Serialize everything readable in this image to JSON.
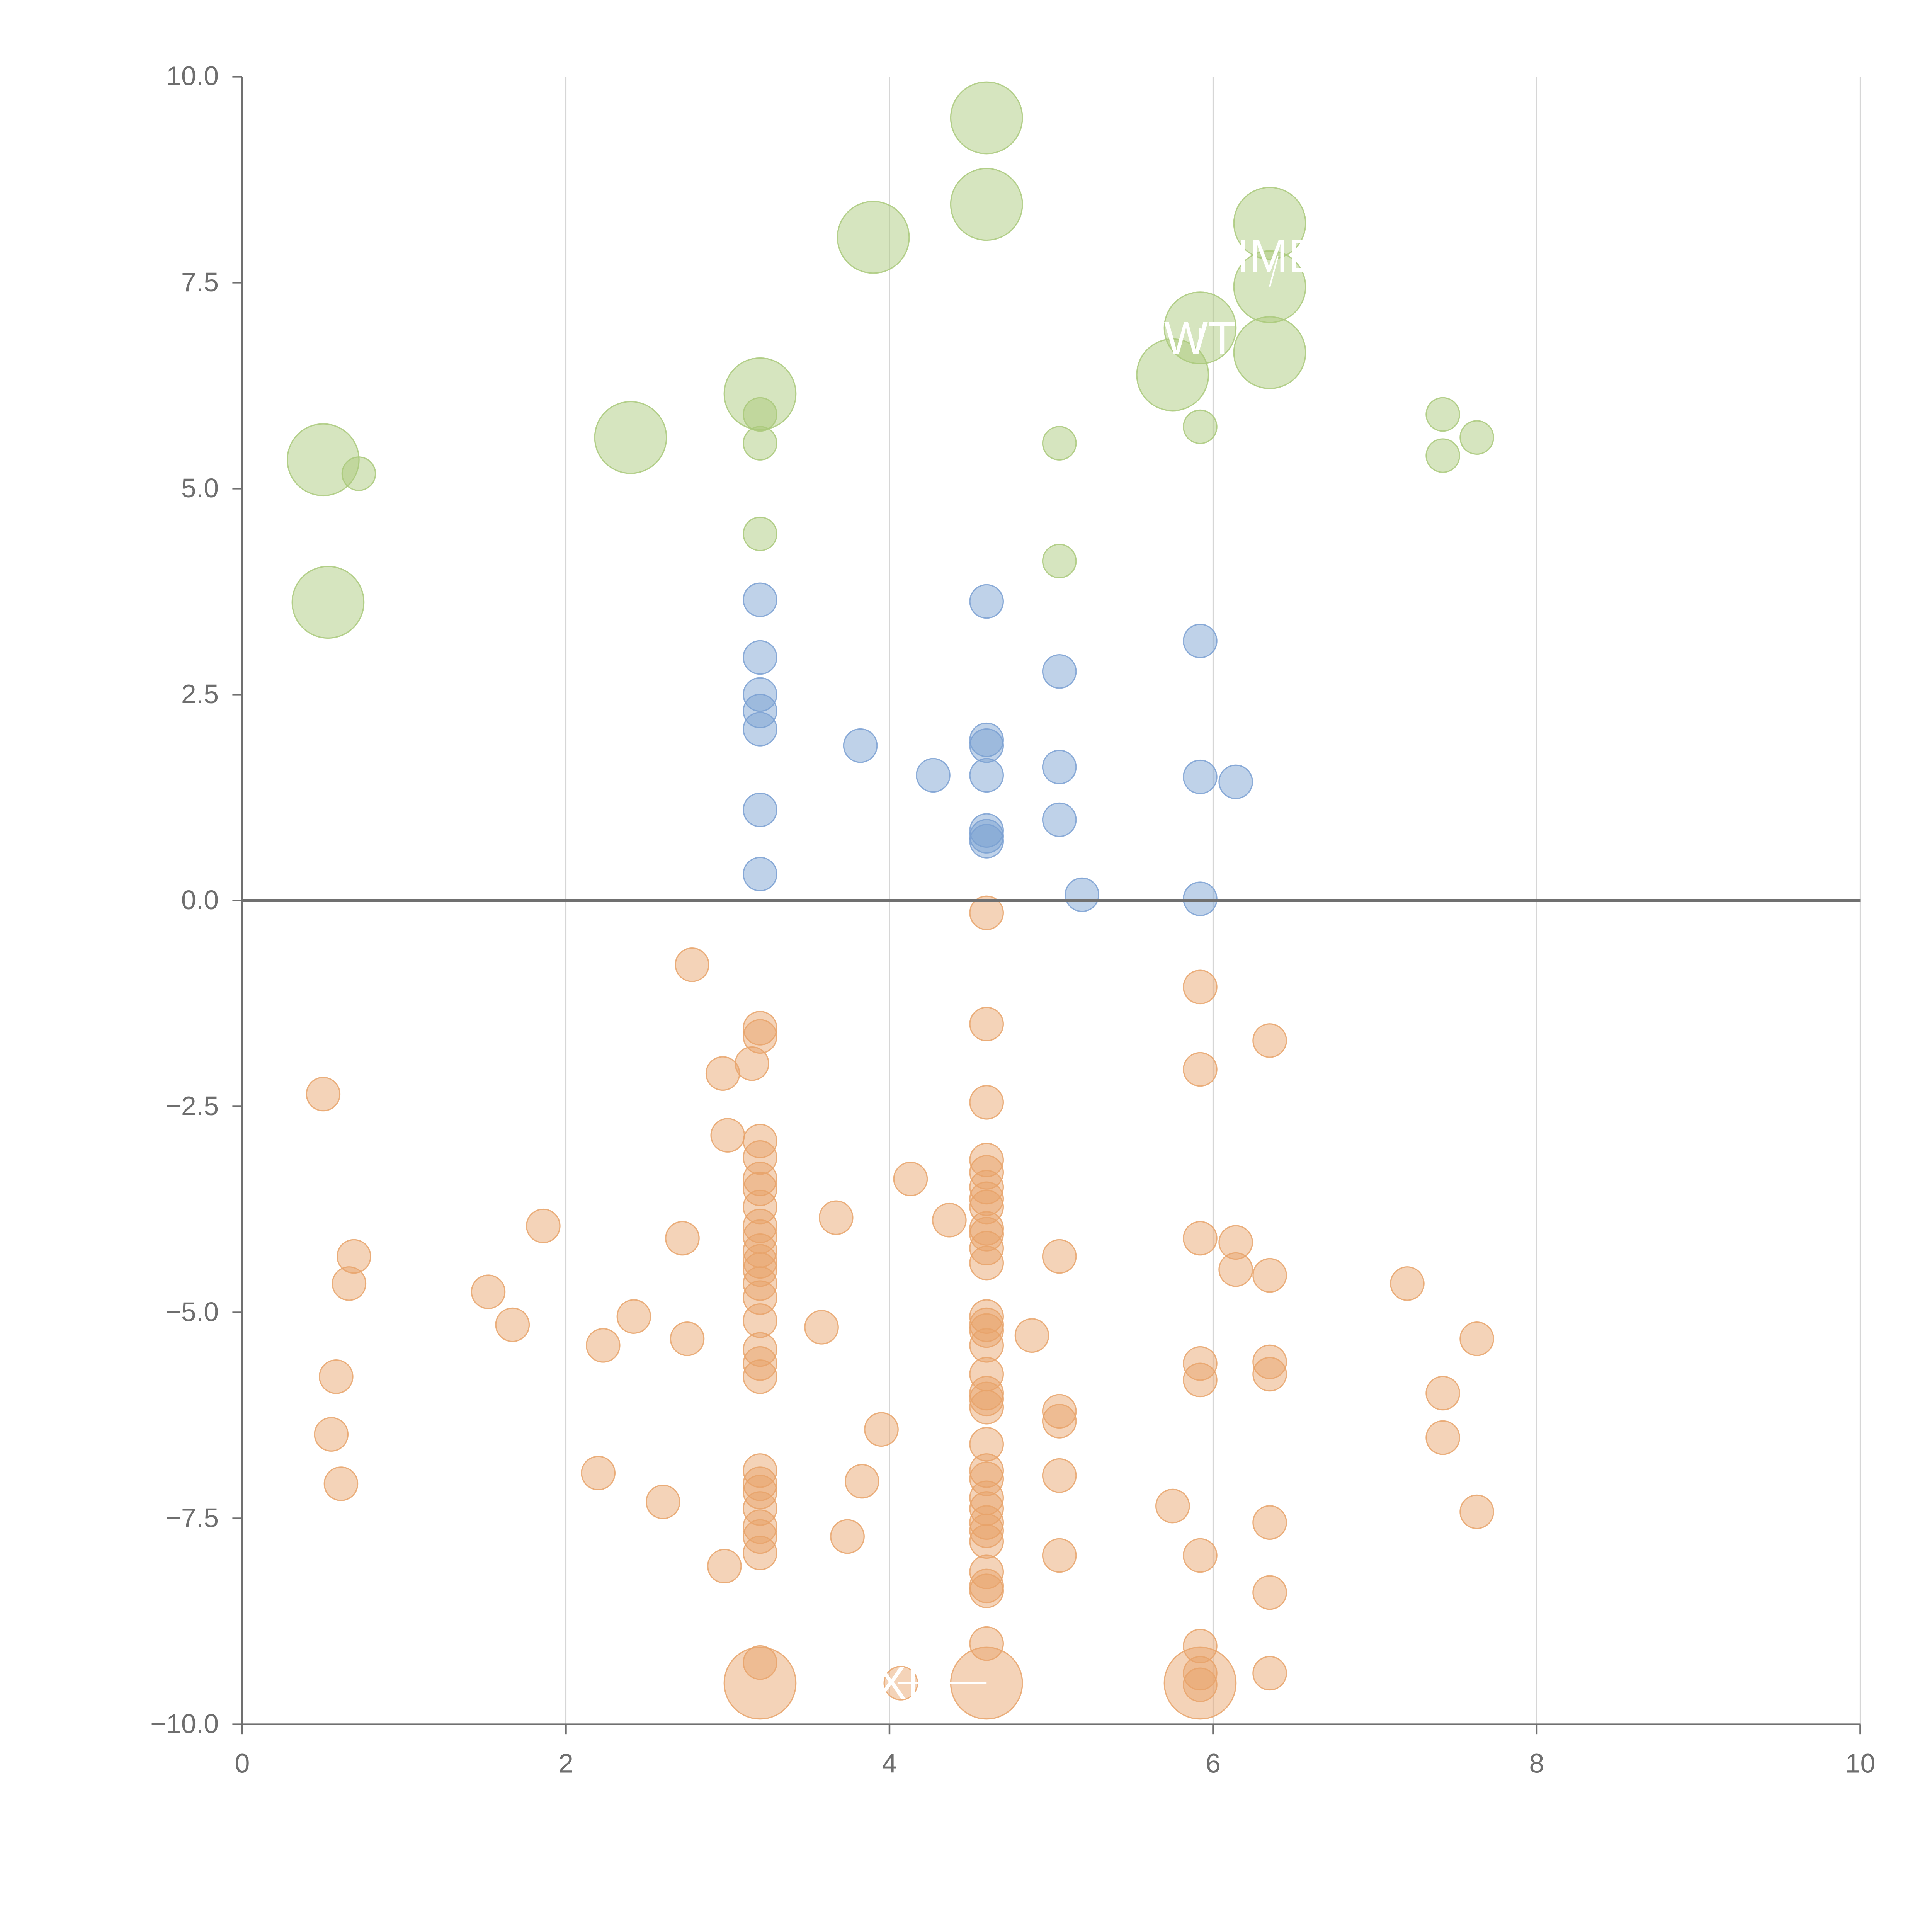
{
  "chart_data": {
    "type": "scatter",
    "title": "",
    "xlabel": "",
    "ylabel": "",
    "xlim": [
      0,
      10
    ],
    "ylim": [
      -10,
      10
    ],
    "x_ticks": [
      0,
      2,
      4,
      6,
      8,
      10
    ],
    "x_tick_labels": [
      "0",
      "2",
      "4",
      "6",
      "8",
      "10"
    ],
    "y_ticks": [
      -10,
      -7.5,
      -5,
      -2.5,
      0,
      2.5,
      5,
      7.5,
      10
    ],
    "y_tick_labels": [
      "−10.0",
      "−7.5",
      "−5.0",
      "−2.5",
      "0.0",
      "2.5",
      "5.0",
      "7.5",
      "10.0"
    ],
    "grid": "vertical",
    "reference_line_y": 0,
    "colors": {
      "green": "#a9c97a",
      "blue": "#7aa0d2",
      "orange": "#e8a36a",
      "axis": "#707070",
      "grid": "#d6d6d6",
      "label": "#ffffff"
    },
    "series": [
      {
        "name": "green",
        "points": [
          {
            "x": 0.5,
            "y": 5.35,
            "s": 3
          },
          {
            "x": 0.72,
            "y": 5.18,
            "s": 1
          },
          {
            "x": 0.53,
            "y": 3.62,
            "s": 3
          },
          {
            "x": 2.4,
            "y": 5.62,
            "s": 3
          },
          {
            "x": 3.2,
            "y": 6.15,
            "s": 3
          },
          {
            "x": 3.2,
            "y": 5.9,
            "s": 1
          },
          {
            "x": 3.2,
            "y": 5.55,
            "s": 1
          },
          {
            "x": 3.2,
            "y": 4.45,
            "s": 1
          },
          {
            "x": 3.9,
            "y": 8.05,
            "s": 3
          },
          {
            "x": 4.6,
            "y": 9.5,
            "s": 3
          },
          {
            "x": 4.6,
            "y": 8.45,
            "s": 3
          },
          {
            "x": 5.05,
            "y": 5.55,
            "s": 1
          },
          {
            "x": 5.05,
            "y": 4.12,
            "s": 1
          },
          {
            "x": 5.75,
            "y": 6.38,
            "s": 3
          },
          {
            "x": 5.92,
            "y": 6.95,
            "s": 3
          },
          {
            "x": 5.92,
            "y": 5.75,
            "s": 1
          },
          {
            "x": 6.35,
            "y": 8.22,
            "s": 3
          },
          {
            "x": 6.35,
            "y": 7.45,
            "s": 3
          },
          {
            "x": 6.35,
            "y": 6.65,
            "s": 3
          },
          {
            "x": 7.42,
            "y": 5.9,
            "s": 1
          },
          {
            "x": 7.42,
            "y": 5.4,
            "s": 1
          },
          {
            "x": 7.63,
            "y": 5.62,
            "s": 1
          }
        ]
      },
      {
        "name": "blue",
        "points": [
          {
            "x": 3.2,
            "y": 3.65,
            "s": 1
          },
          {
            "x": 3.2,
            "y": 2.95,
            "s": 1
          },
          {
            "x": 3.2,
            "y": 2.5,
            "s": 1
          },
          {
            "x": 3.2,
            "y": 2.3,
            "s": 1
          },
          {
            "x": 3.2,
            "y": 2.08,
            "s": 1
          },
          {
            "x": 3.2,
            "y": 1.1,
            "s": 1
          },
          {
            "x": 3.2,
            "y": 0.32,
            "s": 1
          },
          {
            "x": 3.82,
            "y": 1.88,
            "s": 1
          },
          {
            "x": 4.27,
            "y": 1.52,
            "s": 1
          },
          {
            "x": 4.6,
            "y": 3.63,
            "s": 1
          },
          {
            "x": 4.6,
            "y": 1.95,
            "s": 1
          },
          {
            "x": 4.6,
            "y": 1.88,
            "s": 1
          },
          {
            "x": 4.6,
            "y": 1.52,
            "s": 1
          },
          {
            "x": 4.6,
            "y": 0.85,
            "s": 1
          },
          {
            "x": 4.6,
            "y": 0.78,
            "s": 1
          },
          {
            "x": 4.6,
            "y": 0.72,
            "s": 1
          },
          {
            "x": 5.05,
            "y": 2.78,
            "s": 1
          },
          {
            "x": 5.05,
            "y": 1.62,
            "s": 1
          },
          {
            "x": 5.05,
            "y": 0.98,
            "s": 1
          },
          {
            "x": 5.19,
            "y": 0.07,
            "s": 1
          },
          {
            "x": 5.92,
            "y": 3.15,
            "s": 1
          },
          {
            "x": 5.92,
            "y": 1.5,
            "s": 1
          },
          {
            "x": 5.92,
            "y": 0.02,
            "s": 1
          },
          {
            "x": 6.14,
            "y": 1.44,
            "s": 1
          }
        ]
      },
      {
        "name": "orange",
        "points": [
          {
            "x": 0.5,
            "y": -2.35,
            "s": 1
          },
          {
            "x": 0.69,
            "y": -4.32,
            "s": 1
          },
          {
            "x": 0.66,
            "y": -4.65,
            "s": 1
          },
          {
            "x": 0.58,
            "y": -5.78,
            "s": 1
          },
          {
            "x": 0.55,
            "y": -6.48,
            "s": 1
          },
          {
            "x": 0.61,
            "y": -7.08,
            "s": 1
          },
          {
            "x": 1.52,
            "y": -4.75,
            "s": 1
          },
          {
            "x": 1.67,
            "y": -5.15,
            "s": 1
          },
          {
            "x": 1.86,
            "y": -3.95,
            "s": 1
          },
          {
            "x": 2.2,
            "y": -6.95,
            "s": 1
          },
          {
            "x": 2.23,
            "y": -5.4,
            "s": 1
          },
          {
            "x": 2.42,
            "y": -5.05,
            "s": 1
          },
          {
            "x": 2.6,
            "y": -7.3,
            "s": 1
          },
          {
            "x": 2.72,
            "y": -4.1,
            "s": 1
          },
          {
            "x": 2.75,
            "y": -5.32,
            "s": 1
          },
          {
            "x": 2.78,
            "y": -0.78,
            "s": 1
          },
          {
            "x": 2.97,
            "y": -2.1,
            "s": 1
          },
          {
            "x": 2.98,
            "y": -8.08,
            "s": 1
          },
          {
            "x": 3.0,
            "y": -2.85,
            "s": 1
          },
          {
            "x": 3.15,
            "y": -1.98,
            "s": 1
          },
          {
            "x": 3.2,
            "y": -1.55,
            "s": 1
          },
          {
            "x": 3.2,
            "y": -1.65,
            "s": 1
          },
          {
            "x": 3.2,
            "y": -2.92,
            "s": 1
          },
          {
            "x": 3.2,
            "y": -3.12,
            "s": 1
          },
          {
            "x": 3.2,
            "y": -3.38,
            "s": 1
          },
          {
            "x": 3.2,
            "y": -3.5,
            "s": 1
          },
          {
            "x": 3.2,
            "y": -3.72,
            "s": 1
          },
          {
            "x": 3.2,
            "y": -3.95,
            "s": 1
          },
          {
            "x": 3.2,
            "y": -4.08,
            "s": 1
          },
          {
            "x": 3.2,
            "y": -4.25,
            "s": 1
          },
          {
            "x": 3.2,
            "y": -4.38,
            "s": 1
          },
          {
            "x": 3.2,
            "y": -4.48,
            "s": 1
          },
          {
            "x": 3.2,
            "y": -4.65,
            "s": 1
          },
          {
            "x": 3.2,
            "y": -4.82,
            "s": 1
          },
          {
            "x": 3.2,
            "y": -5.1,
            "s": 1
          },
          {
            "x": 3.2,
            "y": -5.45,
            "s": 1
          },
          {
            "x": 3.2,
            "y": -5.62,
            "s": 1
          },
          {
            "x": 3.2,
            "y": -5.78,
            "s": 1
          },
          {
            "x": 3.2,
            "y": -6.92,
            "s": 1
          },
          {
            "x": 3.2,
            "y": -7.08,
            "s": 1
          },
          {
            "x": 3.2,
            "y": -7.18,
            "s": 1
          },
          {
            "x": 3.2,
            "y": -7.38,
            "s": 1
          },
          {
            "x": 3.2,
            "y": -7.6,
            "s": 1
          },
          {
            "x": 3.2,
            "y": -7.72,
            "s": 1
          },
          {
            "x": 3.2,
            "y": -7.92,
            "s": 1
          },
          {
            "x": 3.2,
            "y": -9.25,
            "s": 1
          },
          {
            "x": 3.2,
            "y": -9.5,
            "s": 3
          },
          {
            "x": 3.58,
            "y": -5.18,
            "s": 1
          },
          {
            "x": 3.67,
            "y": -3.85,
            "s": 1
          },
          {
            "x": 3.74,
            "y": -7.72,
            "s": 1
          },
          {
            "x": 3.83,
            "y": -7.05,
            "s": 1
          },
          {
            "x": 3.95,
            "y": -6.42,
            "s": 1
          },
          {
            "x": 4.07,
            "y": -9.5,
            "s": 1
          },
          {
            "x": 4.13,
            "y": -3.38,
            "s": 1
          },
          {
            "x": 4.37,
            "y": -3.88,
            "s": 1
          },
          {
            "x": 4.6,
            "y": -0.15,
            "s": 1
          },
          {
            "x": 4.6,
            "y": -1.5,
            "s": 1
          },
          {
            "x": 4.6,
            "y": -2.45,
            "s": 1
          },
          {
            "x": 4.6,
            "y": -3.15,
            "s": 1
          },
          {
            "x": 4.6,
            "y": -3.3,
            "s": 1
          },
          {
            "x": 4.6,
            "y": -3.48,
            "s": 1
          },
          {
            "x": 4.6,
            "y": -3.62,
            "s": 1
          },
          {
            "x": 4.6,
            "y": -3.72,
            "s": 1
          },
          {
            "x": 4.6,
            "y": -3.98,
            "s": 1
          },
          {
            "x": 4.6,
            "y": -4.05,
            "s": 1
          },
          {
            "x": 4.6,
            "y": -4.22,
            "s": 1
          },
          {
            "x": 4.6,
            "y": -4.4,
            "s": 1
          },
          {
            "x": 4.6,
            "y": -5.05,
            "s": 1
          },
          {
            "x": 4.6,
            "y": -5.15,
            "s": 1
          },
          {
            "x": 4.6,
            "y": -5.22,
            "s": 1
          },
          {
            "x": 4.6,
            "y": -5.4,
            "s": 1
          },
          {
            "x": 4.6,
            "y": -5.75,
            "s": 1
          },
          {
            "x": 4.6,
            "y": -5.98,
            "s": 1
          },
          {
            "x": 4.6,
            "y": -6.05,
            "s": 1
          },
          {
            "x": 4.6,
            "y": -6.15,
            "s": 1
          },
          {
            "x": 4.6,
            "y": -6.6,
            "s": 1
          },
          {
            "x": 4.6,
            "y": -6.92,
            "s": 1
          },
          {
            "x": 4.6,
            "y": -7.02,
            "s": 1
          },
          {
            "x": 4.6,
            "y": -7.25,
            "s": 1
          },
          {
            "x": 4.6,
            "y": -7.38,
            "s": 1
          },
          {
            "x": 4.6,
            "y": -7.55,
            "s": 1
          },
          {
            "x": 4.6,
            "y": -7.65,
            "s": 1
          },
          {
            "x": 4.6,
            "y": -7.78,
            "s": 1
          },
          {
            "x": 4.6,
            "y": -8.15,
            "s": 1
          },
          {
            "x": 4.6,
            "y": -8.32,
            "s": 1
          },
          {
            "x": 4.6,
            "y": -8.38,
            "s": 1
          },
          {
            "x": 4.6,
            "y": -9.02,
            "s": 1
          },
          {
            "x": 4.6,
            "y": -9.5,
            "s": 3
          },
          {
            "x": 4.88,
            "y": -5.28,
            "s": 1
          },
          {
            "x": 5.05,
            "y": -4.32,
            "s": 1
          },
          {
            "x": 5.05,
            "y": -6.2,
            "s": 1
          },
          {
            "x": 5.05,
            "y": -6.32,
            "s": 1
          },
          {
            "x": 5.05,
            "y": -6.98,
            "s": 1
          },
          {
            "x": 5.05,
            "y": -7.95,
            "s": 1
          },
          {
            "x": 5.75,
            "y": -7.35,
            "s": 1
          },
          {
            "x": 5.92,
            "y": -1.05,
            "s": 1
          },
          {
            "x": 5.92,
            "y": -2.05,
            "s": 1
          },
          {
            "x": 5.92,
            "y": -4.1,
            "s": 1
          },
          {
            "x": 5.92,
            "y": -5.62,
            "s": 1
          },
          {
            "x": 5.92,
            "y": -5.82,
            "s": 1
          },
          {
            "x": 5.92,
            "y": -7.95,
            "s": 1
          },
          {
            "x": 5.92,
            "y": -9.05,
            "s": 1
          },
          {
            "x": 5.92,
            "y": -9.38,
            "s": 1
          },
          {
            "x": 5.92,
            "y": -9.52,
            "s": 1
          },
          {
            "x": 5.92,
            "y": -9.5,
            "s": 3
          },
          {
            "x": 6.14,
            "y": -4.15,
            "s": 1
          },
          {
            "x": 6.14,
            "y": -4.48,
            "s": 1
          },
          {
            "x": 6.35,
            "y": -1.7,
            "s": 1
          },
          {
            "x": 6.35,
            "y": -4.55,
            "s": 1
          },
          {
            "x": 6.35,
            "y": -5.6,
            "s": 1
          },
          {
            "x": 6.35,
            "y": -5.75,
            "s": 1
          },
          {
            "x": 6.35,
            "y": -7.55,
            "s": 1
          },
          {
            "x": 6.35,
            "y": -8.4,
            "s": 1
          },
          {
            "x": 6.35,
            "y": -9.38,
            "s": 1
          },
          {
            "x": 7.2,
            "y": -4.65,
            "s": 1
          },
          {
            "x": 7.42,
            "y": -5.98,
            "s": 1
          },
          {
            "x": 7.42,
            "y": -6.52,
            "s": 1
          },
          {
            "x": 7.63,
            "y": -5.32,
            "s": 1
          },
          {
            "x": 7.63,
            "y": -7.42,
            "s": 1
          }
        ]
      }
    ],
    "labels": [
      {
        "text": "IME",
        "x": 6.4,
        "y": 7.82,
        "ax": 6.35,
        "ay": 7.45
      },
      {
        "text": "WT",
        "x": 5.92,
        "y": 6.82,
        "ax": 5.92,
        "ay": 6.95
      },
      {
        "text": "XI",
        "x": 4.05,
        "y": -9.5,
        "ax": 4.6,
        "ay": -9.5
      }
    ]
  }
}
